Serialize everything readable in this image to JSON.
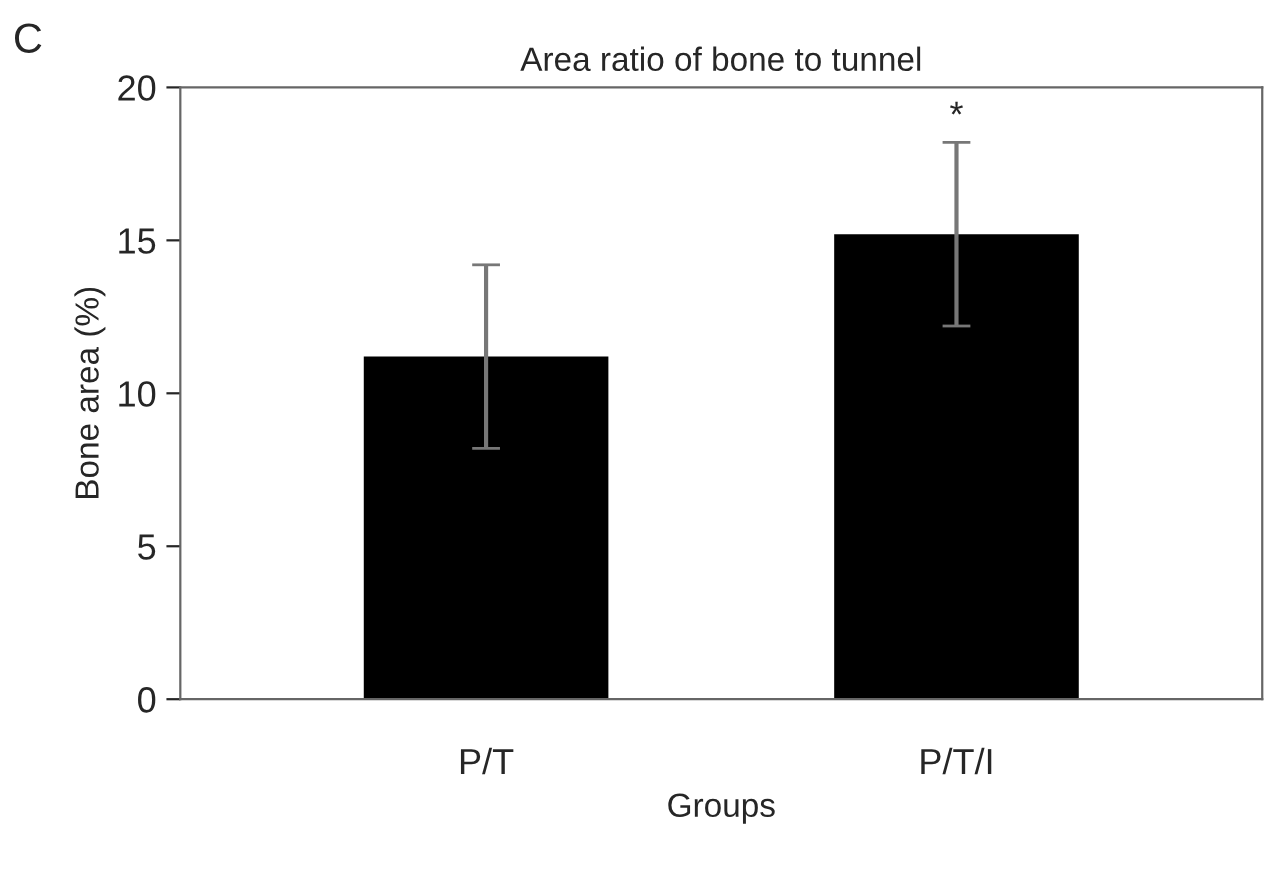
{
  "chart_data": {
    "type": "bar",
    "title": "Area ratio of bone to tunnel",
    "xlabel": "Groups",
    "ylabel": "Bone area (%)",
    "categories": [
      "P/T",
      "P/T/I"
    ],
    "values": [
      11.2,
      15.2
    ],
    "errors": [
      3.0,
      3.0
    ],
    "color": "#000000",
    "ylim": [
      0,
      20
    ],
    "yticks": [
      0,
      5,
      10,
      15,
      20
    ],
    "grid": false,
    "annotations": [
      "C",
      {
        "text": "*",
        "x": "P/T/I",
        "y": 18.2
      }
    ]
  }
}
